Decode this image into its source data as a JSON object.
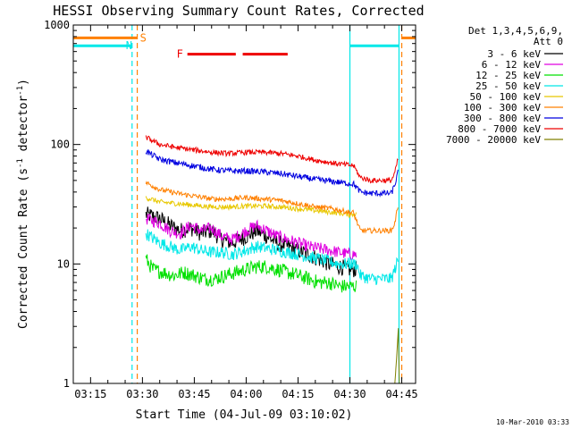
{
  "chart_data": {
    "type": "line",
    "title": "HESSI Observing Summary Count Rates, Corrected",
    "xlabel": "Start Time (04-Jul-09 03:10:02)",
    "ylabel_main": "Corrected Count Rate (s",
    "ylabel_sup1": "-1",
    "ylabel_mid": " detector",
    "ylabel_sup2": "-1",
    "ylabel_end": ")",
    "ylog": true,
    "ylim": [
      1,
      1000
    ],
    "xlim_min": [
      190,
      289
    ],
    "x_ticks": [
      {
        "min": 195,
        "label": "03:15"
      },
      {
        "min": 210,
        "label": "03:30"
      },
      {
        "min": 225,
        "label": "03:45"
      },
      {
        "min": 240,
        "label": "04:00"
      },
      {
        "min": 255,
        "label": "04:15"
      },
      {
        "min": 270,
        "label": "04:30"
      },
      {
        "min": 285,
        "label": "04:45"
      }
    ],
    "y_ticks": [
      {
        "v": 1,
        "label": "1"
      },
      {
        "v": 10,
        "label": "10"
      },
      {
        "v": 100,
        "label": "100"
      },
      {
        "v": 1000,
        "label": "1000"
      }
    ],
    "legend_title_1": "Det 1,3,4,5,6,9,",
    "legend_title_2": "Att 0",
    "series": [
      {
        "name": "3 - 6 keV",
        "color": "#000000",
        "points": [
          [
            211,
            26
          ],
          [
            215,
            24
          ],
          [
            218,
            21
          ],
          [
            221,
            19
          ],
          [
            224,
            20
          ],
          [
            227,
            18
          ],
          [
            230,
            19
          ],
          [
            233,
            16
          ],
          [
            236,
            15
          ],
          [
            240,
            17
          ],
          [
            243,
            19
          ],
          [
            246,
            17
          ],
          [
            249,
            15
          ],
          [
            252,
            14
          ],
          [
            255,
            13
          ],
          [
            258,
            12
          ],
          [
            261,
            11
          ],
          [
            264,
            10
          ],
          [
            267,
            9.5
          ],
          [
            270,
            9
          ],
          [
            272,
            9
          ]
        ]
      },
      {
        "name": "6 - 12 keV",
        "color": "#e000e0",
        "points": [
          [
            211,
            24
          ],
          [
            215,
            22
          ],
          [
            218,
            19
          ],
          [
            221,
            18
          ],
          [
            224,
            21
          ],
          [
            227,
            19
          ],
          [
            230,
            20
          ],
          [
            233,
            17
          ],
          [
            236,
            16
          ],
          [
            240,
            19
          ],
          [
            243,
            21
          ],
          [
            246,
            19
          ],
          [
            249,
            17
          ],
          [
            252,
            16
          ],
          [
            255,
            15
          ],
          [
            258,
            14
          ],
          [
            261,
            13.5
          ],
          [
            264,
            13
          ],
          [
            267,
            12.5
          ],
          [
            270,
            12
          ],
          [
            272,
            12
          ]
        ]
      },
      {
        "name": "12 - 25 keV",
        "color": "#00e000",
        "points": [
          [
            211,
            11
          ],
          [
            213,
            9
          ],
          [
            216,
            8.5
          ],
          [
            219,
            8
          ],
          [
            222,
            8.5
          ],
          [
            225,
            8
          ],
          [
            228,
            7.5
          ],
          [
            231,
            7.5
          ],
          [
            234,
            8
          ],
          [
            237,
            8.5
          ],
          [
            240,
            9
          ],
          [
            243,
            9.5
          ],
          [
            246,
            9.5
          ],
          [
            249,
            9
          ],
          [
            252,
            8.5
          ],
          [
            255,
            8
          ],
          [
            258,
            7.5
          ],
          [
            261,
            7
          ],
          [
            264,
            7
          ],
          [
            267,
            6.5
          ],
          [
            270,
            6.5
          ],
          [
            272,
            6.5
          ]
        ]
      },
      {
        "name": "25 - 50 keV",
        "color": "#00e8e8",
        "points": [
          [
            211,
            18
          ],
          [
            215,
            15
          ],
          [
            218,
            14
          ],
          [
            221,
            13
          ],
          [
            224,
            14
          ],
          [
            227,
            13
          ],
          [
            230,
            12.5
          ],
          [
            233,
            12.5
          ],
          [
            236,
            12
          ],
          [
            240,
            13
          ],
          [
            243,
            14
          ],
          [
            246,
            13.5
          ],
          [
            249,
            13
          ],
          [
            252,
            12.5
          ],
          [
            255,
            12
          ],
          [
            258,
            11.5
          ],
          [
            261,
            11
          ],
          [
            264,
            10.5
          ],
          [
            267,
            10
          ],
          [
            270,
            10
          ],
          [
            272,
            10
          ],
          [
            273,
            8
          ],
          [
            276,
            7.5
          ],
          [
            279,
            7.5
          ],
          [
            282,
            7.5
          ],
          [
            283,
            9
          ],
          [
            284,
            11
          ]
        ]
      },
      {
        "name": "50 - 100 keV",
        "color": "#e8c800",
        "points": [
          [
            211,
            36
          ],
          [
            215,
            33
          ],
          [
            220,
            32
          ],
          [
            225,
            31
          ],
          [
            230,
            30
          ],
          [
            235,
            30
          ],
          [
            240,
            30.5
          ],
          [
            245,
            30.5
          ],
          [
            250,
            30
          ],
          [
            255,
            29
          ],
          [
            260,
            28
          ],
          [
            265,
            27
          ],
          [
            270,
            26
          ],
          [
            272,
            26
          ]
        ]
      },
      {
        "name": "100 - 300 keV",
        "color": "#ff8000",
        "points": [
          [
            211,
            48
          ],
          [
            215,
            42
          ],
          [
            220,
            39
          ],
          [
            225,
            37
          ],
          [
            230,
            35
          ],
          [
            235,
            35
          ],
          [
            240,
            36
          ],
          [
            245,
            35
          ],
          [
            250,
            34
          ],
          [
            255,
            32
          ],
          [
            260,
            30
          ],
          [
            265,
            29
          ],
          [
            270,
            27
          ],
          [
            271,
            27
          ],
          [
            273,
            19
          ],
          [
            276,
            19
          ],
          [
            279,
            19
          ],
          [
            282,
            19
          ],
          [
            283,
            22
          ],
          [
            284,
            32
          ]
        ]
      },
      {
        "name": "300 - 800 keV",
        "color": "#0000e0",
        "points": [
          [
            211,
            88
          ],
          [
            215,
            75
          ],
          [
            220,
            70
          ],
          [
            225,
            66
          ],
          [
            230,
            62
          ],
          [
            235,
            60
          ],
          [
            240,
            60
          ],
          [
            245,
            59
          ],
          [
            250,
            57
          ],
          [
            255,
            54
          ],
          [
            260,
            51
          ],
          [
            265,
            49
          ],
          [
            270,
            47
          ],
          [
            271,
            47
          ],
          [
            273,
            40
          ],
          [
            276,
            39
          ],
          [
            279,
            39
          ],
          [
            282,
            39
          ],
          [
            283,
            46
          ],
          [
            284,
            60
          ]
        ]
      },
      {
        "name": "800 - 7000 keV",
        "color": "#ee0000",
        "points": [
          [
            211,
            115
          ],
          [
            215,
            100
          ],
          [
            220,
            94
          ],
          [
            225,
            90
          ],
          [
            230,
            86
          ],
          [
            235,
            84
          ],
          [
            240,
            86
          ],
          [
            245,
            86
          ],
          [
            250,
            84
          ],
          [
            255,
            80
          ],
          [
            260,
            74
          ],
          [
            265,
            70
          ],
          [
            270,
            67
          ],
          [
            271,
            67
          ],
          [
            273,
            53
          ],
          [
            276,
            50
          ],
          [
            279,
            50
          ],
          [
            282,
            50
          ],
          [
            283,
            58
          ],
          [
            284,
            78
          ]
        ]
      },
      {
        "name": "7000 - 20000 keV",
        "color": "#808000",
        "points": [
          [
            283,
            1
          ],
          [
            283.5,
            1.6
          ],
          [
            284,
            2.9
          ],
          [
            284.3,
            1
          ]
        ]
      }
    ],
    "attenuator_label": "S",
    "attenuator_color": "#ff8000",
    "attenuator_segments": [
      [
        190,
        208.5
      ],
      [
        285,
        289
      ]
    ],
    "attenuator_level": 780,
    "night_label": "N",
    "night_color": "#00e8e8",
    "night_segments": [
      [
        190,
        207
      ],
      [
        270,
        284.2
      ]
    ],
    "night_level": 670,
    "flare_label": "F",
    "flare_color": "#ee0000",
    "flare_segments": [
      [
        223,
        237
      ],
      [
        239,
        252
      ]
    ],
    "flare_level": 570,
    "vlines": [
      {
        "min": 207,
        "color": "#00e8e8",
        "dash": true
      },
      {
        "min": 208.5,
        "color": "#ff8000",
        "dash": true
      },
      {
        "min": 270,
        "color": "#00e8e8",
        "dash": false
      },
      {
        "min": 284.2,
        "color": "#00e8e8",
        "dash": false
      },
      {
        "min": 285,
        "color": "#ff8000",
        "dash": true
      }
    ],
    "timestamp": "10-Mar-2010 03:33"
  }
}
